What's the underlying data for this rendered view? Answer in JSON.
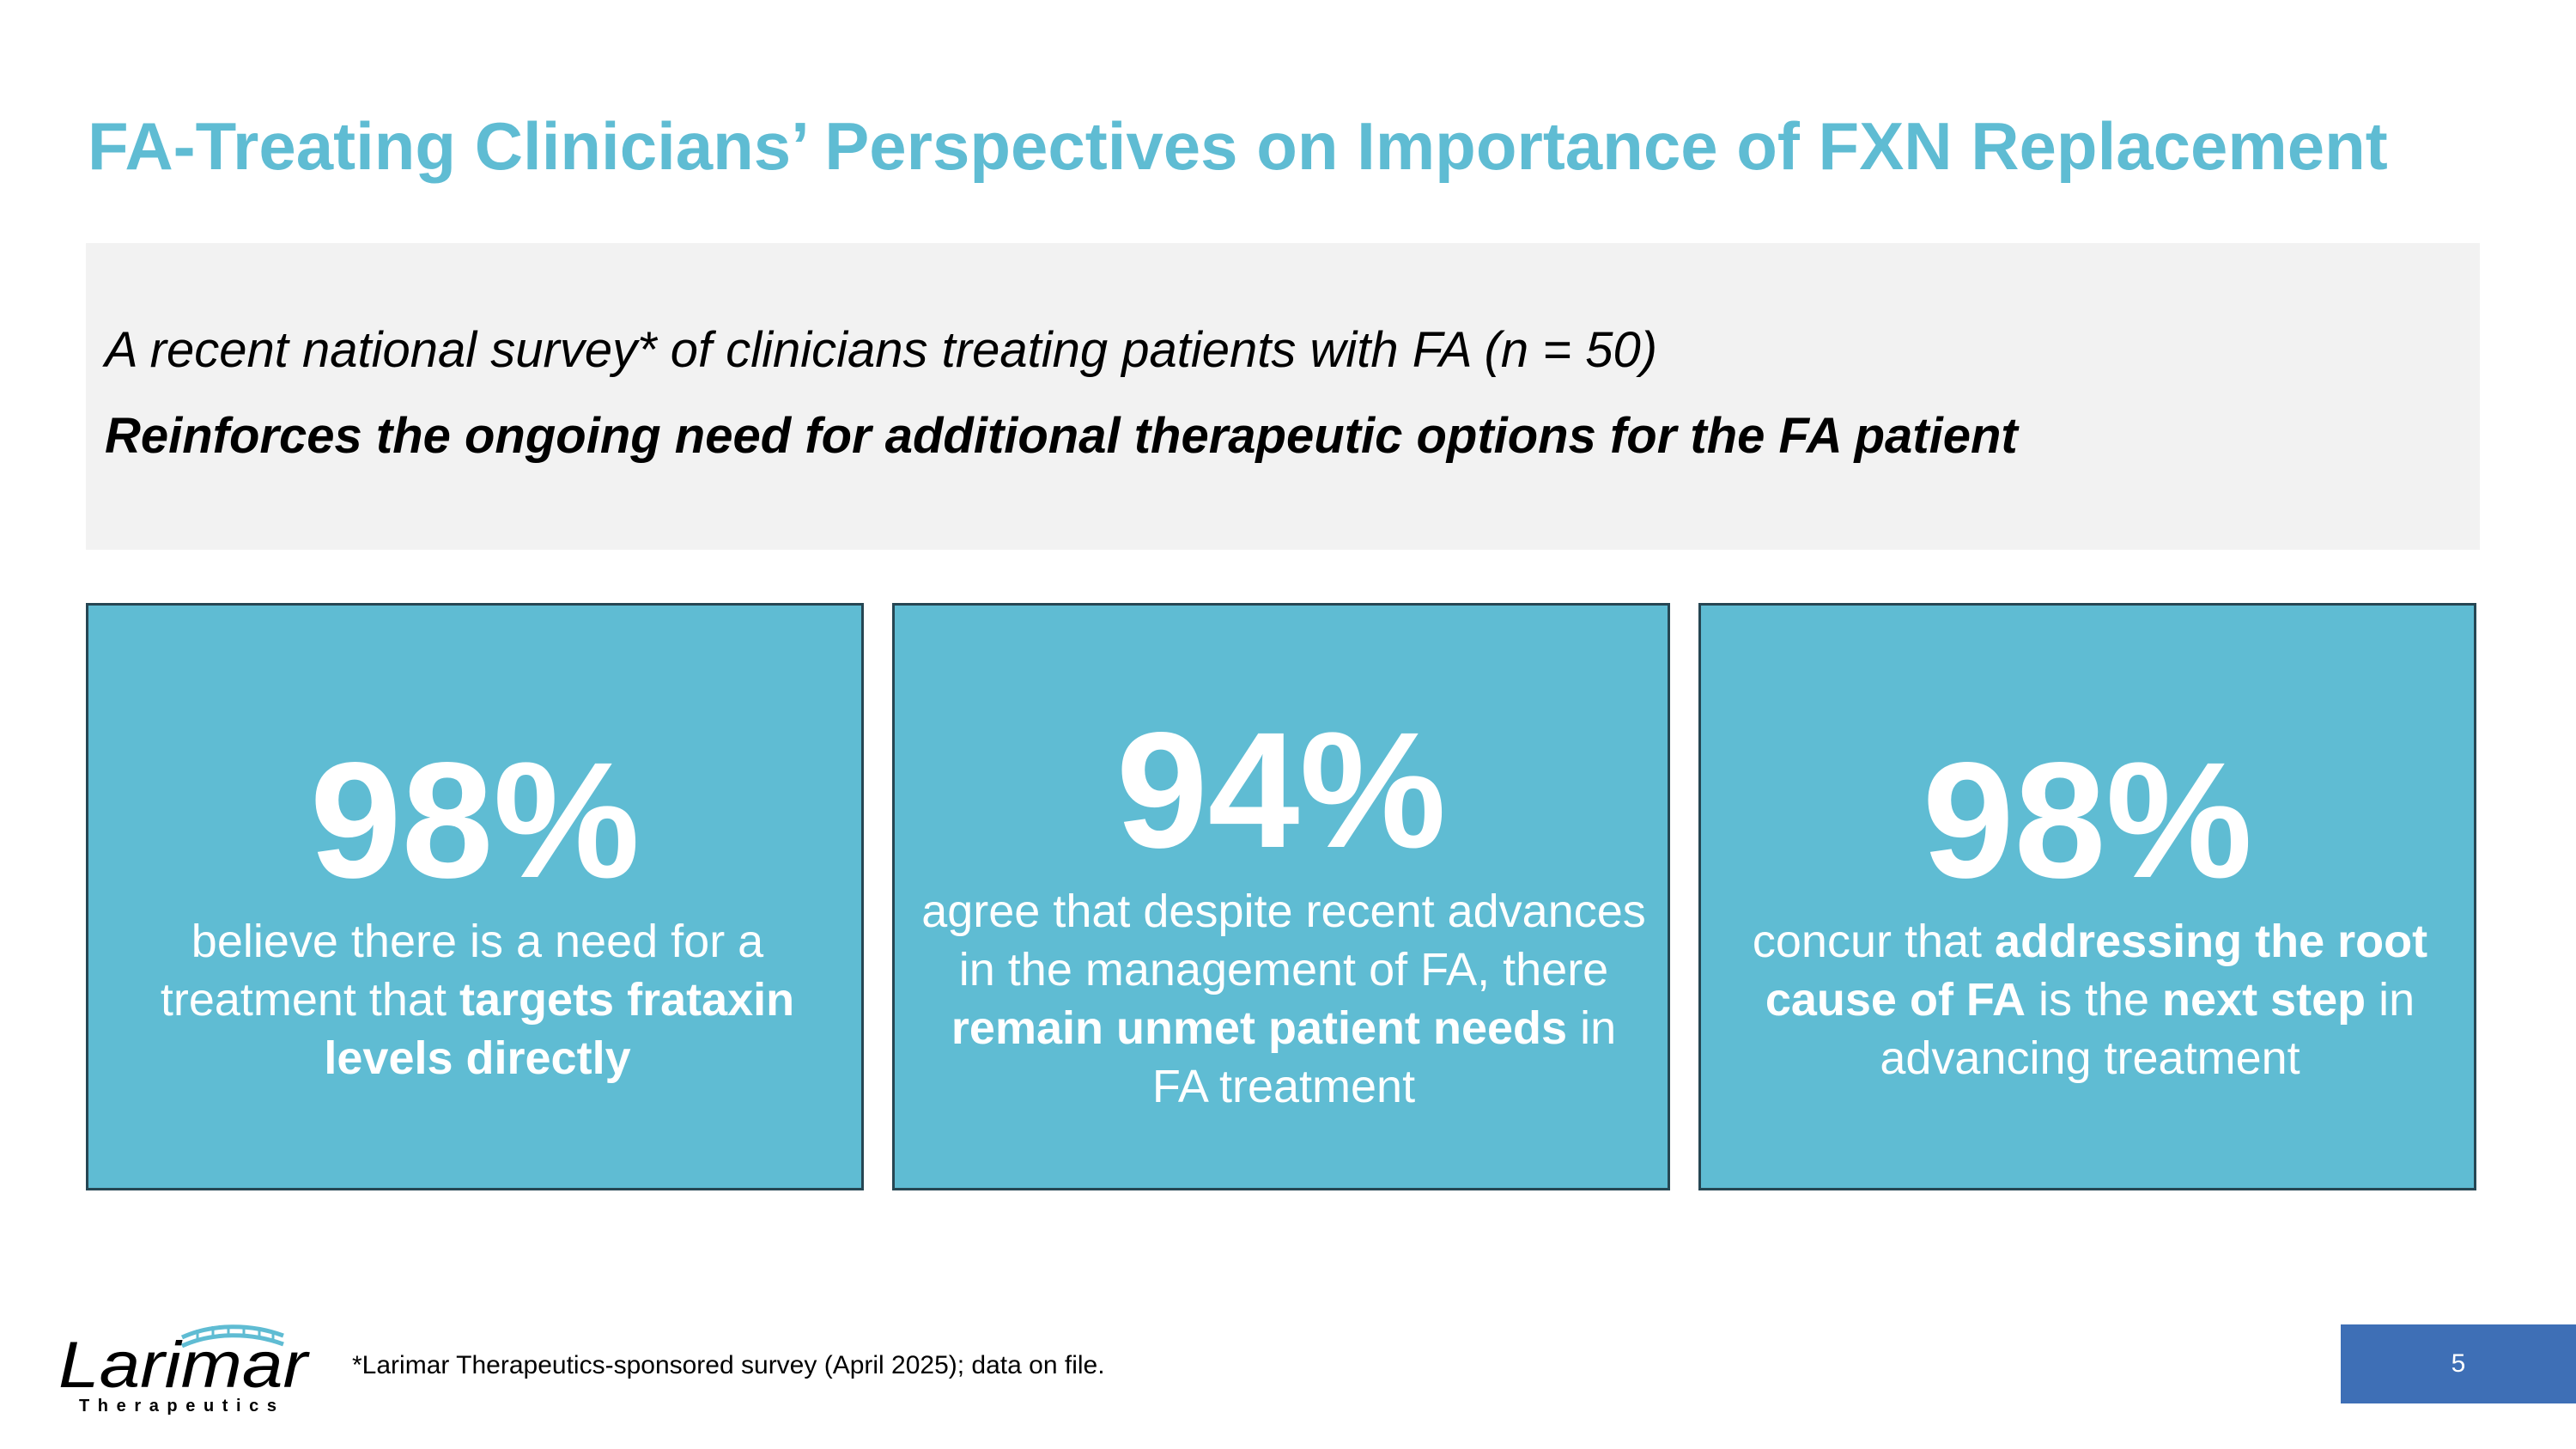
{
  "slide": {
    "title": "FA-Treating Clinicians’ Perspectives on Importance of FXN Replacement",
    "banner": {
      "line1": "A recent national survey* of clinicians treating patients with FA (n = 50)",
      "line2": "Reinforces the ongoing need for additional therapeutic options for the FA patient"
    },
    "cards": [
      {
        "stat": "98%",
        "text_a": "believe there is a need for a treatment that ",
        "text_b": "targets frataxin levels directly"
      },
      {
        "stat": "94%",
        "text_a": "agree that despite recent advances in the management of FA, there ",
        "text_b": "remain unmet patient needs",
        "text_c": " in FA treatment"
      },
      {
        "stat": "98%",
        "text_a": "concur that ",
        "text_b": "addressing the root cause of FA",
        "text_c": " is the ",
        "text_d": "next step",
        "text_e": " in advancing treatment"
      }
    ],
    "footnote": "*Larimar Therapeutics-sponsored survey (April 2025); data on file.",
    "page_number": "5",
    "logo": {
      "name": "Larimar",
      "tagline": "Therapeutics"
    },
    "colors": {
      "accent": "#5fbcd3",
      "card_border": "#264653",
      "banner_bg": "#f2f2f2",
      "page_box": "#3e6fb6",
      "logo_text": "#000000"
    }
  }
}
